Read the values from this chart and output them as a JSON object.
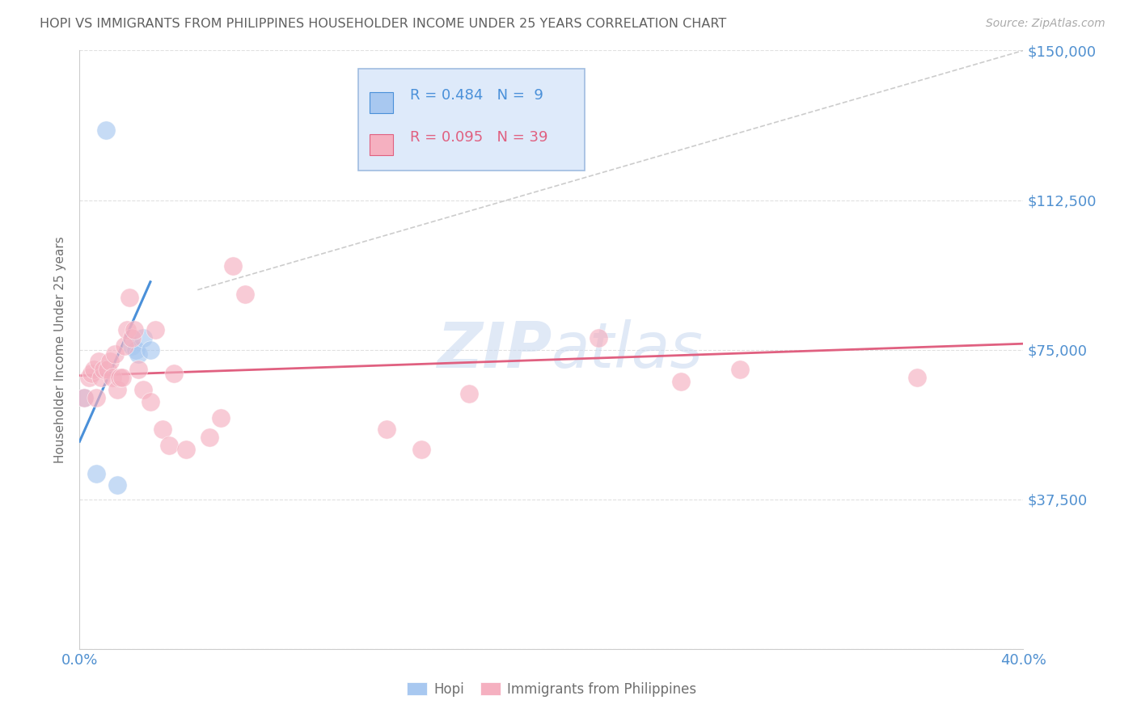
{
  "title": "HOPI VS IMMIGRANTS FROM PHILIPPINES HOUSEHOLDER INCOME UNDER 25 YEARS CORRELATION CHART",
  "source": "Source: ZipAtlas.com",
  "ylabel": "Householder Income Under 25 years",
  "xlim": [
    0.0,
    0.4
  ],
  "ylim": [
    0,
    150000
  ],
  "yticks": [
    0,
    37500,
    75000,
    112500,
    150000
  ],
  "ytick_labels": [
    "",
    "$37,500",
    "$75,000",
    "$112,500",
    "$150,000"
  ],
  "xticks": [
    0.0,
    0.08,
    0.16,
    0.24,
    0.32,
    0.4
  ],
  "xtick_labels": [
    "0.0%",
    "",
    "",
    "",
    "",
    "40.0%"
  ],
  "hopi_R": 0.484,
  "hopi_N": 9,
  "phil_R": 0.095,
  "phil_N": 39,
  "hopi_color": "#a8c8f0",
  "phil_color": "#f5b0c0",
  "hopi_line_color": "#4a90d9",
  "phil_line_color": "#e06080",
  "ref_line_color": "#c0c0c0",
  "legend_box_color": "#deeafa",
  "legend_box_edge": "#a0bce0",
  "title_color": "#606060",
  "axis_label_color": "#707070",
  "tick_color": "#5090d0",
  "grid_color": "#e0e0e0",
  "watermark_color": "#c8d8f0",
  "hopi_x": [
    0.002,
    0.007,
    0.011,
    0.016,
    0.022,
    0.024,
    0.025,
    0.027,
    0.03
  ],
  "hopi_y": [
    63000,
    44000,
    130000,
    41000,
    76000,
    75000,
    74000,
    78000,
    75000
  ],
  "phil_x": [
    0.002,
    0.004,
    0.005,
    0.006,
    0.007,
    0.008,
    0.009,
    0.01,
    0.012,
    0.013,
    0.014,
    0.015,
    0.016,
    0.017,
    0.018,
    0.019,
    0.02,
    0.021,
    0.022,
    0.023,
    0.025,
    0.027,
    0.03,
    0.032,
    0.035,
    0.038,
    0.04,
    0.045,
    0.055,
    0.06,
    0.065,
    0.07,
    0.13,
    0.145,
    0.165,
    0.22,
    0.255,
    0.28,
    0.355
  ],
  "phil_y": [
    63000,
    68000,
    69000,
    70000,
    63000,
    72000,
    68000,
    70000,
    70000,
    72000,
    68000,
    74000,
    65000,
    68000,
    68000,
    76000,
    80000,
    88000,
    78000,
    80000,
    70000,
    65000,
    62000,
    80000,
    55000,
    51000,
    69000,
    50000,
    53000,
    58000,
    96000,
    89000,
    55000,
    50000,
    64000,
    78000,
    67000,
    70000,
    68000
  ],
  "hopi_trend_x": [
    0.0,
    0.03
  ],
  "hopi_trend_y": [
    52000,
    92000
  ],
  "phil_trend_x": [
    0.0,
    0.4
  ],
  "phil_trend_y": [
    68500,
    76500
  ],
  "ref_line_x": [
    0.05,
    0.4
  ],
  "ref_line_y": [
    90000,
    150000
  ]
}
